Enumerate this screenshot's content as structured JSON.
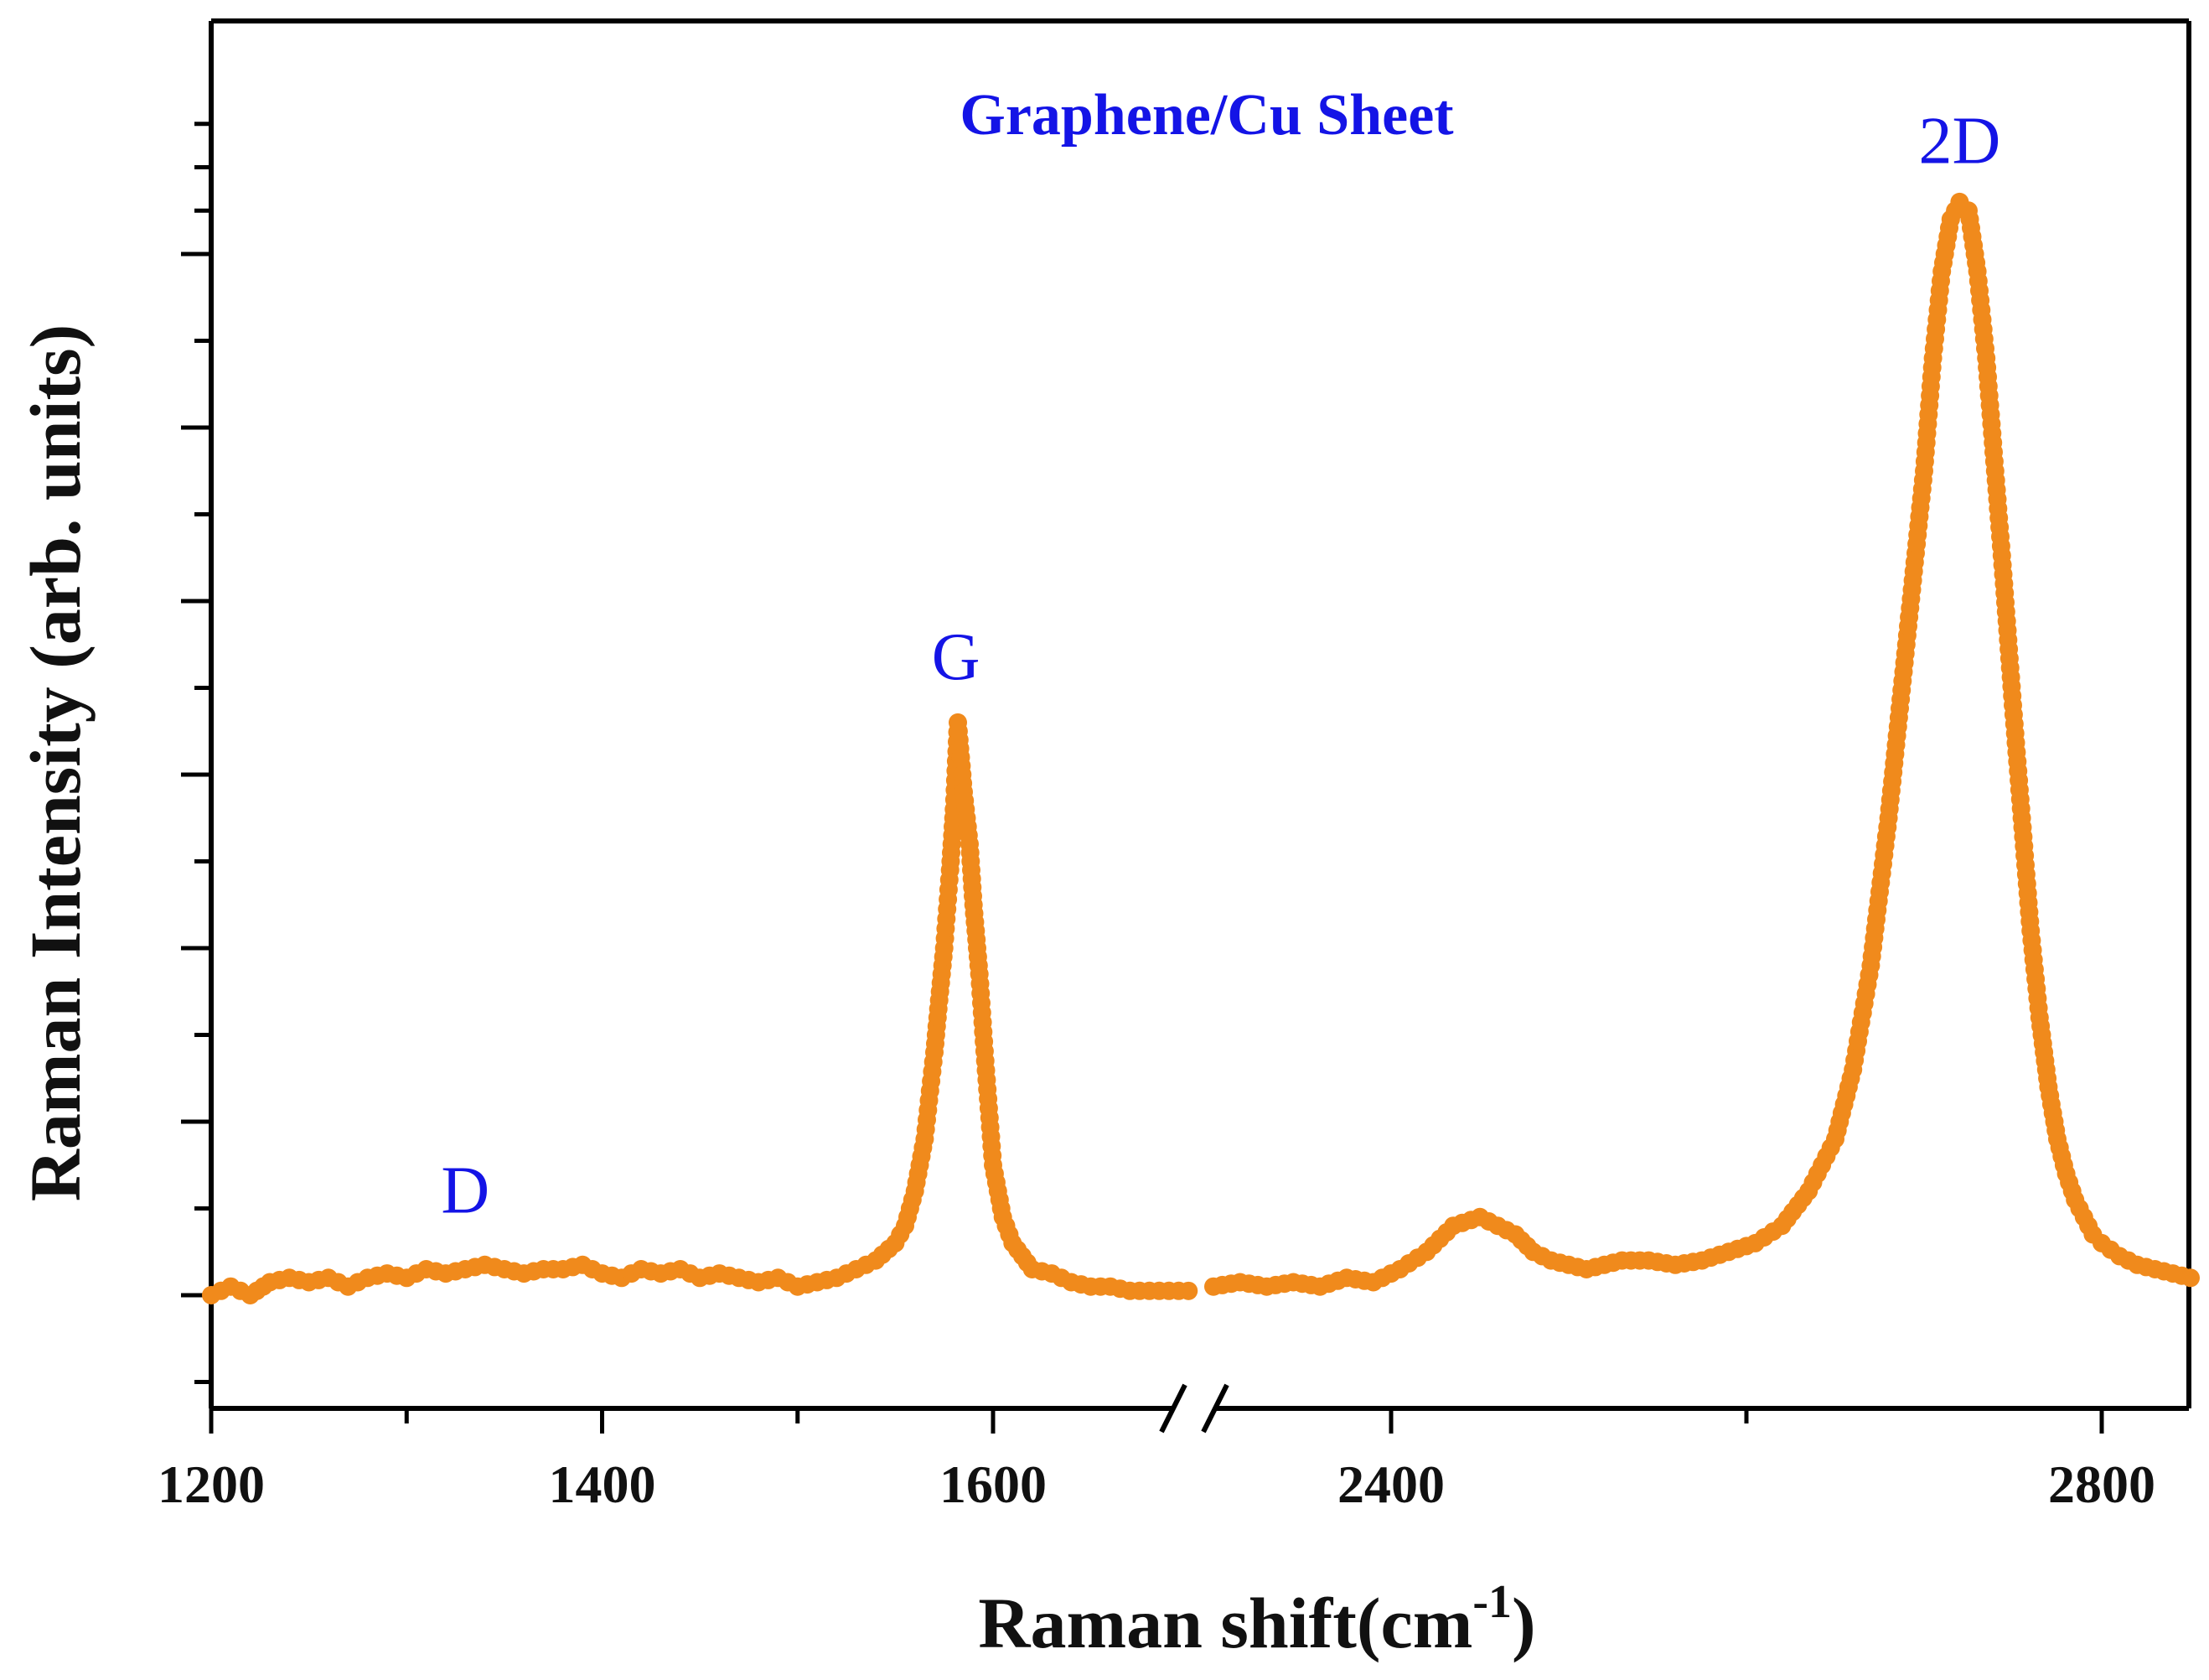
{
  "chart_data": {
    "type": "scatter",
    "title": "Graphene/Cu Sheet",
    "xlabel": "Raman shift(cm",
    "xlabel_superscript": "-1",
    "xlabel_suffix": ")",
    "ylabel": "Raman Intensity (arb. units)",
    "axis_break": {
      "from": 1700,
      "to": 2300
    },
    "x_segments": [
      {
        "xlim": [
          1200,
          1700
        ]
      },
      {
        "xlim": [
          2300,
          2850
        ]
      }
    ],
    "ylim": [
      -0.1,
      1.3
    ],
    "x_tick_labels": [
      {
        "value": 1200,
        "label": "1200"
      },
      {
        "value": 1400,
        "label": "1400"
      },
      {
        "value": 1600,
        "label": "1600"
      },
      {
        "value": 2400,
        "label": "2400"
      },
      {
        "value": 2800,
        "label": "2800"
      }
    ],
    "x_minor_ticks": [
      1300,
      1500,
      2600
    ],
    "y_major_ticks": [
      0,
      0.2,
      0.4,
      0.6,
      0.8,
      1.0,
      1.2
    ],
    "y_minor_ticks": [
      -0.1,
      0.1,
      0.3,
      0.5,
      0.7,
      0.9,
      1.1,
      1.3
    ],
    "series": [
      {
        "name": "Graphene/Cu Sheet",
        "color": "#f08a1c",
        "segments": [
          {
            "x": [
              1200,
              1210,
              1220,
              1230,
              1240,
              1250,
              1260,
              1270,
              1280,
              1290,
              1300,
              1310,
              1320,
              1330,
              1340,
              1350,
              1360,
              1370,
              1380,
              1390,
              1400,
              1410,
              1420,
              1430,
              1440,
              1450,
              1460,
              1470,
              1480,
              1490,
              1500,
              1510,
              1520,
              1530,
              1540,
              1550,
              1555,
              1560,
              1565,
              1570,
              1572,
              1575,
              1578,
              1580,
              1582,
              1585,
              1588,
              1590,
              1593,
              1596,
              1600,
              1605,
              1610,
              1615,
              1620,
              1630,
              1640,
              1650,
              1660,
              1670,
              1680,
              1690,
              1700
            ],
            "y": [
              0.0,
              0.01,
              0.0,
              0.015,
              0.02,
              0.015,
              0.02,
              0.01,
              0.02,
              0.025,
              0.02,
              0.03,
              0.025,
              0.03,
              0.035,
              0.03,
              0.025,
              0.03,
              0.03,
              0.035,
              0.025,
              0.02,
              0.03,
              0.025,
              0.03,
              0.02,
              0.025,
              0.02,
              0.015,
              0.02,
              0.01,
              0.015,
              0.02,
              0.03,
              0.04,
              0.06,
              0.08,
              0.12,
              0.18,
              0.28,
              0.33,
              0.4,
              0.49,
              0.56,
              0.66,
              0.58,
              0.52,
              0.45,
              0.37,
              0.27,
              0.15,
              0.09,
              0.06,
              0.045,
              0.03,
              0.025,
              0.015,
              0.01,
              0.01,
              0.005,
              0.005,
              0.005,
              0.005
            ]
          },
          {
            "x": [
              2300,
              2315,
              2330,
              2345,
              2360,
              2375,
              2390,
              2405,
              2420,
              2435,
              2450,
              2460,
              2470,
              2480,
              2490,
              2500,
              2510,
              2520,
              2530,
              2545,
              2560,
              2575,
              2590,
              2605,
              2620,
              2635,
              2650,
              2660,
              2670,
              2680,
              2690,
              2700,
              2705,
              2710,
              2715,
              2720,
              2725,
              2730,
              2735,
              2740,
              2745,
              2750,
              2755,
              2760,
              2765,
              2770,
              2775,
              2780,
              2785,
              2790,
              2795,
              2800,
              2810,
              2820,
              2830,
              2840,
              2850
            ],
            "y": [
              0.01,
              0.015,
              0.01,
              0.015,
              0.01,
              0.02,
              0.015,
              0.03,
              0.05,
              0.08,
              0.09,
              0.08,
              0.07,
              0.05,
              0.04,
              0.035,
              0.03,
              0.035,
              0.04,
              0.04,
              0.035,
              0.04,
              0.05,
              0.06,
              0.08,
              0.12,
              0.18,
              0.26,
              0.38,
              0.55,
              0.75,
              0.95,
              1.08,
              1.18,
              1.24,
              1.26,
              1.25,
              1.18,
              1.08,
              0.95,
              0.82,
              0.68,
              0.55,
              0.42,
              0.32,
              0.24,
              0.18,
              0.14,
              0.11,
              0.09,
              0.07,
              0.06,
              0.045,
              0.035,
              0.03,
              0.025,
              0.02
            ]
          }
        ]
      }
    ],
    "annotations": [
      {
        "text": "D",
        "x": 1330,
        "y": 0.095,
        "color": "#1414e6"
      },
      {
        "text": "G",
        "x": 1581,
        "y": 0.71,
        "color": "#1414e6"
      },
      {
        "text": "2D",
        "x": 2720,
        "y": 1.305,
        "color": "#1414e6"
      }
    ],
    "title_color": "#1414e6"
  }
}
